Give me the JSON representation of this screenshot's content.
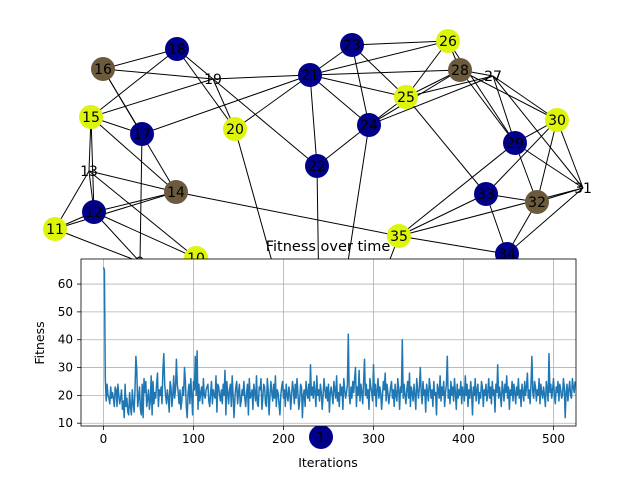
{
  "graph": {
    "colors": {
      "navy": "#00008b",
      "olive": "#6b5a3e",
      "yellow": "#dcf50a",
      "edge": "#000000"
    },
    "nodes": [
      {
        "id": "1",
        "color": "navy"
      },
      {
        "id": "9",
        "color": "none"
      },
      {
        "id": "10",
        "color": "yellow"
      },
      {
        "id": "11",
        "color": "yellow"
      },
      {
        "id": "12",
        "color": "navy"
      },
      {
        "id": "13",
        "color": "none"
      },
      {
        "id": "14",
        "color": "olive"
      },
      {
        "id": "15",
        "color": "yellow"
      },
      {
        "id": "16",
        "color": "olive"
      },
      {
        "id": "17",
        "color": "navy"
      },
      {
        "id": "18",
        "color": "navy"
      },
      {
        "id": "19",
        "color": "none"
      },
      {
        "id": "20",
        "color": "yellow"
      },
      {
        "id": "21",
        "color": "navy"
      },
      {
        "id": "22",
        "color": "navy"
      },
      {
        "id": "23",
        "color": "navy"
      },
      {
        "id": "24",
        "color": "navy"
      },
      {
        "id": "25",
        "color": "yellow"
      },
      {
        "id": "26",
        "color": "yellow"
      },
      {
        "id": "27",
        "color": "none"
      },
      {
        "id": "28",
        "color": "olive"
      },
      {
        "id": "29",
        "color": "navy"
      },
      {
        "id": "30",
        "color": "yellow"
      },
      {
        "id": "31",
        "color": "none"
      },
      {
        "id": "32",
        "color": "olive"
      },
      {
        "id": "33",
        "color": "navy"
      },
      {
        "id": "34",
        "color": "navy"
      },
      {
        "id": "35",
        "color": "yellow"
      }
    ],
    "edges": [
      [
        "16",
        "18"
      ],
      [
        "16",
        "19"
      ],
      [
        "16",
        "17"
      ],
      [
        "16",
        "14"
      ],
      [
        "18",
        "19"
      ],
      [
        "18",
        "15"
      ],
      [
        "18",
        "20"
      ],
      [
        "15",
        "13"
      ],
      [
        "15",
        "17"
      ],
      [
        "15",
        "14"
      ],
      [
        "15",
        "19"
      ],
      [
        "15",
        "12"
      ],
      [
        "13",
        "11"
      ],
      [
        "13",
        "12"
      ],
      [
        "13",
        "14"
      ],
      [
        "13",
        "10"
      ],
      [
        "11",
        "12"
      ],
      [
        "11",
        "14"
      ],
      [
        "12",
        "14"
      ],
      [
        "12",
        "9"
      ],
      [
        "12",
        "10"
      ],
      [
        "11",
        "9"
      ],
      [
        "17",
        "9"
      ],
      [
        "17",
        "21"
      ],
      [
        "19",
        "20"
      ],
      [
        "19",
        "21"
      ],
      [
        "19",
        "22"
      ],
      [
        "20",
        "21"
      ],
      [
        "20",
        "1"
      ],
      [
        "21",
        "23"
      ],
      [
        "21",
        "24"
      ],
      [
        "21",
        "25"
      ],
      [
        "21",
        "22"
      ],
      [
        "21",
        "26"
      ],
      [
        "21",
        "28"
      ],
      [
        "23",
        "26"
      ],
      [
        "23",
        "25"
      ],
      [
        "23",
        "24"
      ],
      [
        "24",
        "25"
      ],
      [
        "24",
        "22"
      ],
      [
        "24",
        "28"
      ],
      [
        "24",
        "27"
      ],
      [
        "25",
        "26"
      ],
      [
        "25",
        "28"
      ],
      [
        "25",
        "27"
      ],
      [
        "25",
        "33"
      ],
      [
        "26",
        "28"
      ],
      [
        "26",
        "29"
      ],
      [
        "28",
        "27"
      ],
      [
        "28",
        "30"
      ],
      [
        "28",
        "29"
      ],
      [
        "27",
        "30"
      ],
      [
        "27",
        "29"
      ],
      [
        "27",
        "31"
      ],
      [
        "29",
        "30"
      ],
      [
        "29",
        "32"
      ],
      [
        "29",
        "31"
      ],
      [
        "30",
        "32"
      ],
      [
        "30",
        "33"
      ],
      [
        "30",
        "31"
      ],
      [
        "31",
        "32"
      ],
      [
        "31",
        "34"
      ],
      [
        "32",
        "33"
      ],
      [
        "32",
        "34"
      ],
      [
        "33",
        "35"
      ],
      [
        "33",
        "34"
      ],
      [
        "34",
        "35"
      ],
      [
        "35",
        "14"
      ],
      [
        "35",
        "1"
      ],
      [
        "24",
        "1"
      ],
      [
        "22",
        "1"
      ],
      [
        "29",
        "35"
      ],
      [
        "31",
        "35"
      ]
    ]
  },
  "chart_data": {
    "type": "line",
    "title": "Fitness over time",
    "xlabel": "Iterations",
    "ylabel": "Fitness",
    "xlim": [
      -25,
      525
    ],
    "ylim": [
      9,
      69
    ],
    "xticks": [
      0,
      100,
      200,
      300,
      400,
      500
    ],
    "yticks": [
      10,
      20,
      30,
      40,
      50,
      60
    ],
    "grid": true,
    "line_color": "#1f77b4",
    "series": [
      {
        "values": [
          66,
          65,
          26,
          18,
          24,
          20,
          19,
          17,
          23,
          19,
          21,
          19,
          16,
          23,
          22,
          16,
          24,
          20,
          17,
          19,
          22,
          15,
          18,
          12,
          24,
          16,
          19,
          14,
          13,
          21,
          16,
          13,
          22,
          17,
          14,
          22,
          34,
          29,
          16,
          19,
          23,
          15,
          13,
          24,
          12,
          26,
          21,
          25,
          16,
          19,
          22,
          15,
          18,
          27,
          13,
          25,
          17,
          21,
          19,
          24,
          28,
          16,
          22,
          20,
          23,
          17,
          29,
          35,
          24,
          20,
          17,
          22,
          19,
          14,
          25,
          23,
          16,
          20,
          27,
          19,
          22,
          33,
          24,
          21,
          17,
          22,
          15,
          18,
          23,
          20,
          30,
          25,
          16,
          12,
          21,
          24,
          17,
          26,
          20,
          13,
          25,
          22,
          34,
          20,
          36,
          15,
          24,
          18,
          21,
          23,
          17,
          26,
          20,
          19,
          22,
          23,
          24,
          18,
          16,
          21,
          25,
          17,
          22,
          20,
          19,
          27,
          14,
          24,
          23,
          20,
          18,
          22,
          17,
          24,
          20,
          29,
          13,
          25,
          21,
          17,
          22,
          24,
          16,
          27,
          20,
          12,
          19,
          23,
          25,
          17,
          21,
          24,
          16,
          18,
          22,
          20,
          25,
          19,
          16,
          21,
          24,
          13,
          26,
          19,
          20,
          22,
          15,
          24,
          21,
          18,
          27,
          17,
          16,
          23,
          22,
          26,
          15,
          19,
          24,
          23,
          17,
          16,
          26,
          22,
          13,
          20,
          25,
          21,
          18,
          24,
          19,
          27,
          16,
          22,
          21,
          17,
          13,
          20,
          23,
          25,
          19,
          22,
          16,
          24,
          20,
          18,
          23,
          21,
          15,
          20,
          25,
          22,
          17,
          24,
          19,
          26,
          21,
          15,
          18,
          24,
          23,
          12,
          20,
          22,
          16,
          25,
          21,
          19,
          24,
          18,
          31,
          20,
          23,
          19,
          25,
          21,
          16,
          27,
          20,
          22,
          18,
          24,
          21,
          15,
          20,
          26,
          22,
          19,
          23,
          18,
          24,
          14,
          21,
          23,
          20,
          17,
          25,
          22,
          19,
          27,
          18,
          21,
          16,
          24,
          20,
          23,
          15,
          26,
          22,
          19,
          21,
          24,
          42,
          20,
          17,
          23,
          19,
          25,
          21,
          26,
          30,
          16,
          23,
          20,
          29,
          18,
          24,
          21,
          17,
          25,
          33,
          20,
          24,
          19,
          22,
          15,
          26,
          23,
          21,
          18,
          31,
          20,
          24,
          16,
          22,
          26,
          19,
          23,
          21,
          15,
          20,
          25,
          22,
          28,
          18,
          24,
          21,
          17,
          20,
          23,
          25,
          19,
          22,
          16,
          24,
          20,
          18,
          26,
          22,
          15,
          23,
          21,
          40,
          19,
          24,
          20,
          17,
          22,
          25,
          19,
          28,
          16,
          23,
          21,
          18,
          24,
          20,
          15,
          26,
          22,
          19,
          23,
          30,
          21,
          17,
          25,
          20,
          22,
          14,
          24,
          21,
          18,
          26,
          23,
          19,
          22,
          16,
          25,
          20,
          21,
          13,
          24,
          22,
          19,
          27,
          18,
          23,
          20,
          25,
          16,
          21,
          24,
          34,
          19,
          22,
          17,
          25,
          20,
          23,
          18,
          26,
          21,
          15,
          24,
          19,
          22,
          20,
          25,
          17,
          23,
          21,
          18,
          27,
          20,
          24,
          16,
          22,
          19,
          25,
          21,
          13,
          23,
          20,
          26,
          18,
          22,
          24,
          17,
          21,
          19,
          25,
          23,
          16,
          22,
          20,
          24,
          18,
          21,
          26,
          19,
          23,
          17,
          25,
          20,
          22,
          14,
          24,
          21,
          31,
          19,
          23,
          20,
          16,
          25,
          22,
          18,
          24,
          21,
          27,
          19,
          23,
          15,
          22,
          20,
          25,
          18,
          24,
          21,
          17,
          23,
          20,
          26,
          19,
          22,
          16,
          24,
          21,
          18,
          25,
          20,
          23,
          28,
          19,
          22,
          17,
          24,
          34,
          21,
          19,
          25,
          23,
          18,
          22,
          20,
          26,
          17,
          24,
          21,
          19,
          23,
          20,
          16,
          25,
          22,
          18,
          35,
          21,
          24,
          19,
          22,
          26,
          20,
          17,
          23,
          21,
          25,
          18,
          24,
          22,
          19,
          20,
          26,
          23,
          12,
          21,
          24,
          18,
          22,
          25,
          20,
          19,
          26,
          23,
          21,
          25
        ],
        "x_start": 0
      }
    ]
  }
}
